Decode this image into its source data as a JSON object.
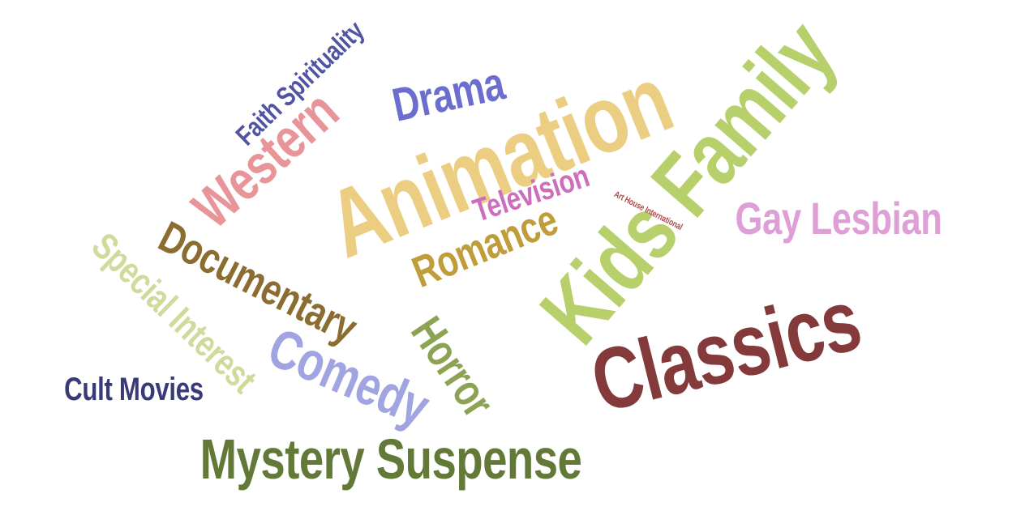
{
  "cloud": {
    "words": [
      {
        "text": "Animation",
        "color": "#ECCE82"
      },
      {
        "text": "Kids Family",
        "color": "#B8D06C"
      },
      {
        "text": "Classics",
        "color": "#843A3A"
      },
      {
        "text": "Mystery Suspense",
        "color": "#637938"
      },
      {
        "text": "Comedy",
        "color": "#A0A4E0"
      },
      {
        "text": "Western",
        "color": "#E8959A"
      },
      {
        "text": "Documentary",
        "color": "#8B6D31"
      },
      {
        "text": "Special Interest",
        "color": "#CEDB9C"
      },
      {
        "text": "Horror",
        "color": "#8DA354"
      },
      {
        "text": "Romance",
        "color": "#BF9D3B"
      },
      {
        "text": "Drama",
        "color": "#6B6ECF"
      },
      {
        "text": "Gay Lesbian",
        "color": "#DE9ED6"
      },
      {
        "text": "Television",
        "color": "#CE6DBD"
      },
      {
        "text": "Faith Spirituality",
        "color": "#5254A3"
      },
      {
        "text": "Cult Movies",
        "color": "#393B79"
      },
      {
        "text": "Art House International",
        "color": "#AD494A"
      }
    ]
  }
}
